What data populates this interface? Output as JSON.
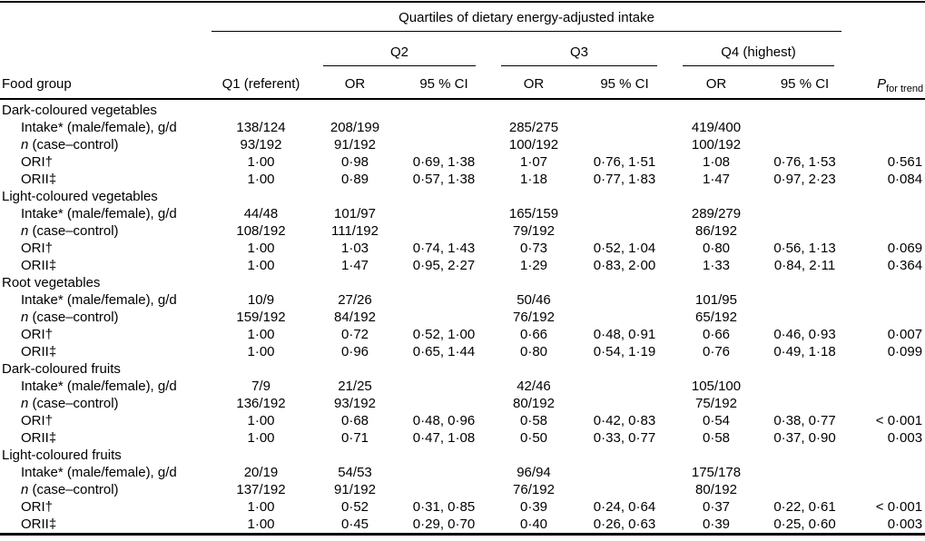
{
  "header": {
    "spanner_title": "Quartiles of dietary energy-adjusted intake",
    "food_group": "Food group",
    "q1": "Q1 (referent)",
    "quartiles": [
      "Q2",
      "Q3",
      "Q4 (highest)"
    ],
    "or": "OR",
    "ci": "95 % CI",
    "p_symbol": "P",
    "p_sub": "for trend"
  },
  "sections": [
    {
      "name": "Dark-coloured vegetables",
      "rows": [
        {
          "em": "",
          "label": "Intake* (male/female), g/d",
          "cells": [
            "138/124",
            "208/199",
            "",
            "285/275",
            "",
            "419/400",
            "",
            ""
          ]
        },
        {
          "em": "n",
          "label": " (case–control)",
          "cells": [
            "93/192",
            "91/192",
            "",
            "100/192",
            "",
            "100/192",
            "",
            ""
          ]
        },
        {
          "em": "",
          "label": "ORI†",
          "cells": [
            "1·00",
            "0·98",
            "0·69, 1·38",
            "1·07",
            "0·76, 1·51",
            "1·08",
            "0·76, 1·53",
            "0·561"
          ]
        },
        {
          "em": "",
          "label": "ORII‡",
          "cells": [
            "1·00",
            "0·89",
            "0·57, 1·38",
            "1·18",
            "0·77, 1·83",
            "1·47",
            "0·97, 2·23",
            "0·084"
          ]
        }
      ]
    },
    {
      "name": "Light-coloured vegetables",
      "rows": [
        {
          "em": "",
          "label": "Intake* (male/female), g/d",
          "cells": [
            "44/48",
            "101/97",
            "",
            "165/159",
            "",
            "289/279",
            "",
            ""
          ]
        },
        {
          "em": "n",
          "label": " (case–control)",
          "cells": [
            "108/192",
            "111/192",
            "",
            "79/192",
            "",
            "86/192",
            "",
            ""
          ]
        },
        {
          "em": "",
          "label": "ORI†",
          "cells": [
            "1·00",
            "1·03",
            "0·74, 1·43",
            "0·73",
            "0·52, 1·04",
            "0·80",
            "0·56, 1·13",
            "0·069"
          ]
        },
        {
          "em": "",
          "label": "ORII‡",
          "cells": [
            "1·00",
            "1·47",
            "0·95, 2·27",
            "1·29",
            "0·83, 2·00",
            "1·33",
            "0·84, 2·11",
            "0·364"
          ]
        }
      ]
    },
    {
      "name": "Root vegetables",
      "rows": [
        {
          "em": "",
          "label": "Intake* (male/female), g/d",
          "cells": [
            "10/9",
            "27/26",
            "",
            "50/46",
            "",
            "101/95",
            "",
            ""
          ]
        },
        {
          "em": "n",
          "label": " (case–control)",
          "cells": [
            "159/192",
            "84/192",
            "",
            "76/192",
            "",
            "65/192",
            "",
            ""
          ]
        },
        {
          "em": "",
          "label": "ORI†",
          "cells": [
            "1·00",
            "0·72",
            "0·52, 1·00",
            "0·66",
            "0·48, 0·91",
            "0·66",
            "0·46, 0·93",
            "0·007"
          ]
        },
        {
          "em": "",
          "label": "ORII‡",
          "cells": [
            "1·00",
            "0·96",
            "0·65, 1·44",
            "0·80",
            "0·54, 1·19",
            "0·76",
            "0·49, 1·18",
            "0·099"
          ]
        }
      ]
    },
    {
      "name": "Dark-coloured fruits",
      "rows": [
        {
          "em": "",
          "label": "Intake* (male/female), g/d",
          "cells": [
            "7/9",
            "21/25",
            "",
            "42/46",
            "",
            "105/100",
            "",
            ""
          ]
        },
        {
          "em": "n",
          "label": " (case–control)",
          "cells": [
            "136/192",
            "93/192",
            "",
            "80/192",
            "",
            "75/192",
            "",
            ""
          ]
        },
        {
          "em": "",
          "label": "ORI†",
          "cells": [
            "1·00",
            "0·68",
            "0·48, 0·96",
            "0·58",
            "0·42, 0·83",
            "0·54",
            "0·38, 0·77",
            "< 0·001"
          ]
        },
        {
          "em": "",
          "label": "ORII‡",
          "cells": [
            "1·00",
            "0·71",
            "0·47, 1·08",
            "0·50",
            "0·33, 0·77",
            "0·58",
            "0·37, 0·90",
            "0·003"
          ]
        }
      ]
    },
    {
      "name": "Light-coloured fruits",
      "rows": [
        {
          "em": "",
          "label": "Intake* (male/female), g/d",
          "cells": [
            "20/19",
            "54/53",
            "",
            "96/94",
            "",
            "175/178",
            "",
            ""
          ]
        },
        {
          "em": "n",
          "label": " (case–control)",
          "cells": [
            "137/192",
            "91/192",
            "",
            "76/192",
            "",
            "80/192",
            "",
            ""
          ]
        },
        {
          "em": "",
          "label": "ORI†",
          "cells": [
            "1·00",
            "0·52",
            "0·31, 0·85",
            "0·39",
            "0·24, 0·64",
            "0·37",
            "0·22, 0·61",
            "< 0·001"
          ]
        },
        {
          "em": "",
          "label": "ORII‡",
          "cells": [
            "1·00",
            "0·45",
            "0·29, 0·70",
            "0·40",
            "0·26, 0·63",
            "0·39",
            "0·25, 0·60",
            "0·003"
          ]
        }
      ]
    }
  ]
}
